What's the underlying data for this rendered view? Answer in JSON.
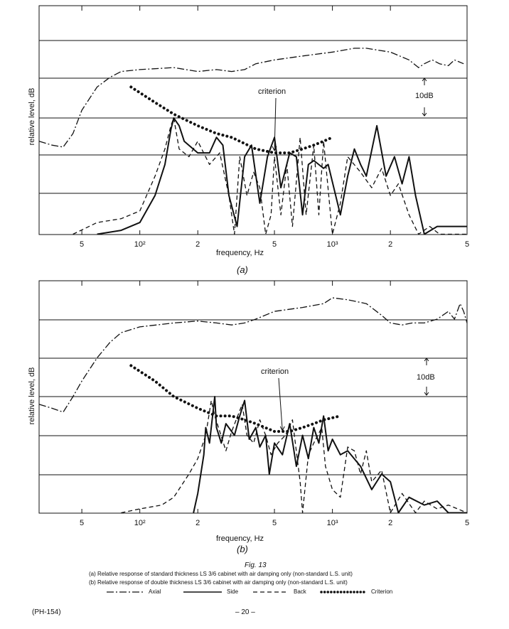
{
  "figure": {
    "number": "Fig. 13",
    "caption_a": "(a) Relative response of standard thickness LS 3/6 cabinet with air damping only (non-standard L.S. unit)",
    "caption_b": "(b) Relative response of double thickness LS 3/6 cabinet with air damping only (non-standard L.S. unit)"
  },
  "legend": [
    {
      "name": "Axial",
      "style": "dash-dot"
    },
    {
      "name": "Side",
      "style": "solid"
    },
    {
      "name": "Back",
      "style": "dashed"
    },
    {
      "name": "Criterion",
      "style": "dotted"
    }
  ],
  "footer": {
    "code": "(PH-154)",
    "page": "– 20 –"
  },
  "chart_data": [
    {
      "type": "line",
      "panel_label": "(a)",
      "xlabel": "frequency, Hz",
      "ylabel": "relative level, dB",
      "xscale": "log",
      "xlim": [
        30,
        5000
      ],
      "x_ticks": [
        {
          "v": 50,
          "t": "5"
        },
        {
          "v": 100,
          "t": "10²"
        },
        {
          "v": 200,
          "t": "2"
        },
        {
          "v": 500,
          "t": "5"
        },
        {
          "v": 1000,
          "t": "10³"
        },
        {
          "v": 2000,
          "t": "2"
        },
        {
          "v": 5000,
          "t": "5"
        }
      ],
      "grid": "horizontal, 10 dB spacing",
      "scale_marker": "10dB",
      "annotation": {
        "text": "criterion",
        "x": 500
      },
      "series": [
        {
          "name": "Axial",
          "points": [
            [
              30,
              -6
            ],
            [
              35,
              -7
            ],
            [
              40,
              -7.5
            ],
            [
              45,
              -4
            ],
            [
              50,
              2
            ],
            [
              60,
              8
            ],
            [
              70,
              10.5
            ],
            [
              80,
              12
            ],
            [
              100,
              12.5
            ],
            [
              150,
              13
            ],
            [
              200,
              12
            ],
            [
              250,
              12.5
            ],
            [
              300,
              12
            ],
            [
              350,
              12.5
            ],
            [
              400,
              14
            ],
            [
              500,
              15
            ],
            [
              700,
              16
            ],
            [
              1000,
              17
            ],
            [
              1300,
              18
            ],
            [
              1500,
              18
            ],
            [
              2000,
              17
            ],
            [
              2500,
              15
            ],
            [
              2800,
              13
            ],
            [
              3000,
              14
            ],
            [
              3300,
              15
            ],
            [
              3600,
              14
            ],
            [
              4000,
              13.5
            ],
            [
              4300,
              15
            ],
            [
              4800,
              14
            ]
          ]
        },
        {
          "name": "Side",
          "points": [
            [
              60,
              -30
            ],
            [
              80,
              -29
            ],
            [
              100,
              -27
            ],
            [
              120,
              -20
            ],
            [
              135,
              -12
            ],
            [
              145,
              -3
            ],
            [
              150,
              0
            ],
            [
              160,
              -2
            ],
            [
              170,
              -6
            ],
            [
              200,
              -9
            ],
            [
              230,
              -9
            ],
            [
              250,
              -5
            ],
            [
              270,
              -7
            ],
            [
              290,
              -20
            ],
            [
              320,
              -28
            ],
            [
              350,
              -10
            ],
            [
              380,
              -7
            ],
            [
              420,
              -22
            ],
            [
              460,
              -10
            ],
            [
              500,
              -5
            ],
            [
              540,
              -18
            ],
            [
              600,
              -9
            ],
            [
              650,
              -10
            ],
            [
              700,
              -25
            ],
            [
              750,
              -12
            ],
            [
              800,
              -11
            ],
            [
              900,
              -13
            ],
            [
              950,
              -12
            ],
            [
              1100,
              -25
            ],
            [
              1200,
              -15
            ],
            [
              1300,
              -8
            ],
            [
              1400,
              -12
            ],
            [
              1500,
              -15
            ],
            [
              1700,
              -2
            ],
            [
              1900,
              -15
            ],
            [
              2100,
              -10
            ],
            [
              2300,
              -17
            ],
            [
              2500,
              -10
            ],
            [
              2700,
              -20
            ],
            [
              3000,
              -30
            ],
            [
              3500,
              -28
            ],
            [
              4000,
              -28
            ],
            [
              5000,
              -28
            ]
          ]
        },
        {
          "name": "Back",
          "points": [
            [
              45,
              -30
            ],
            [
              60,
              -27
            ],
            [
              80,
              -26
            ],
            [
              100,
              -24
            ],
            [
              120,
              -15
            ],
            [
              135,
              -8
            ],
            [
              145,
              -2
            ],
            [
              150,
              0
            ],
            [
              160,
              -8
            ],
            [
              180,
              -10
            ],
            [
              200,
              -6
            ],
            [
              230,
              -12
            ],
            [
              260,
              -9
            ],
            [
              290,
              -20
            ],
            [
              310,
              -30
            ],
            [
              330,
              -10
            ],
            [
              360,
              -20
            ],
            [
              390,
              -14
            ],
            [
              420,
              -18
            ],
            [
              450,
              -30
            ],
            [
              480,
              -25
            ],
            [
              500,
              -10
            ],
            [
              540,
              -25
            ],
            [
              580,
              -12
            ],
            [
              620,
              -28
            ],
            [
              680,
              -5
            ],
            [
              730,
              -25
            ],
            [
              800,
              -7
            ],
            [
              850,
              -25
            ],
            [
              900,
              -6
            ],
            [
              1000,
              -30
            ],
            [
              1100,
              -22
            ],
            [
              1200,
              -10
            ],
            [
              1400,
              -14
            ],
            [
              1600,
              -18
            ],
            [
              1800,
              -13
            ],
            [
              2000,
              -20
            ],
            [
              2200,
              -17
            ],
            [
              2500,
              -25
            ],
            [
              2800,
              -30
            ],
            [
              3200,
              -28
            ],
            [
              3600,
              -30
            ],
            [
              4000,
              -30
            ],
            [
              5000,
              -30
            ]
          ]
        },
        {
          "name": "Criterion",
          "points": [
            [
              90,
              8
            ],
            [
              120,
              4
            ],
            [
              150,
              1
            ],
            [
              200,
              -2
            ],
            [
              250,
              -4
            ],
            [
              300,
              -5
            ],
            [
              400,
              -8
            ],
            [
              500,
              -9
            ],
            [
              600,
              -9
            ],
            [
              700,
              -8
            ],
            [
              800,
              -7
            ],
            [
              900,
              -6
            ],
            [
              1000,
              -5
            ]
          ]
        }
      ]
    },
    {
      "type": "line",
      "panel_label": "(b)",
      "xlabel": "frequency,  Hz",
      "ylabel": "relative level, dB",
      "xscale": "log",
      "xlim": [
        30,
        5000
      ],
      "x_ticks": [
        {
          "v": 50,
          "t": "5"
        },
        {
          "v": 100,
          "t": "10²"
        },
        {
          "v": 200,
          "t": "2"
        },
        {
          "v": 500,
          "t": "5"
        },
        {
          "v": 1000,
          "t": "10³"
        },
        {
          "v": 2000,
          "t": "2"
        },
        {
          "v": 5000,
          "t": "5"
        }
      ],
      "grid": "horizontal, 10 dB spacing",
      "scale_marker": "10dB",
      "annotation": {
        "text": "criterion",
        "x": 550
      },
      "series": [
        {
          "name": "Axial",
          "points": [
            [
              30,
              -2
            ],
            [
              35,
              -3
            ],
            [
              40,
              -4
            ],
            [
              45,
              0
            ],
            [
              50,
              4
            ],
            [
              60,
              10
            ],
            [
              70,
              14
            ],
            [
              80,
              16.5
            ],
            [
              100,
              18
            ],
            [
              150,
              19
            ],
            [
              200,
              19.5
            ],
            [
              250,
              19
            ],
            [
              300,
              18.5
            ],
            [
              350,
              19
            ],
            [
              400,
              20
            ],
            [
              500,
              22
            ],
            [
              700,
              23
            ],
            [
              900,
              24
            ],
            [
              1000,
              25.5
            ],
            [
              1200,
              25
            ],
            [
              1500,
              24
            ],
            [
              1800,
              21
            ],
            [
              2000,
              19
            ],
            [
              2300,
              18.5
            ],
            [
              2600,
              19
            ],
            [
              3000,
              19
            ],
            [
              3500,
              20
            ],
            [
              4000,
              22
            ],
            [
              4300,
              20
            ],
            [
              4600,
              24
            ],
            [
              4800,
              22
            ],
            [
              5000,
              19
            ]
          ]
        },
        {
          "name": "Side",
          "points": [
            [
              190,
              -30
            ],
            [
              200,
              -25
            ],
            [
              215,
              -15
            ],
            [
              220,
              -8
            ],
            [
              230,
              -12
            ],
            [
              245,
              0
            ],
            [
              250,
              -8
            ],
            [
              265,
              -12
            ],
            [
              280,
              -7
            ],
            [
              310,
              -10
            ],
            [
              330,
              -5
            ],
            [
              350,
              -1
            ],
            [
              370,
              -11
            ],
            [
              400,
              -8
            ],
            [
              420,
              -13
            ],
            [
              450,
              -10
            ],
            [
              470,
              -20
            ],
            [
              500,
              -12
            ],
            [
              550,
              -15
            ],
            [
              600,
              -7
            ],
            [
              650,
              -18
            ],
            [
              700,
              -10
            ],
            [
              750,
              -16
            ],
            [
              800,
              -8
            ],
            [
              850,
              -12
            ],
            [
              900,
              -5
            ],
            [
              950,
              -14
            ],
            [
              1000,
              -11
            ],
            [
              1100,
              -15
            ],
            [
              1200,
              -14
            ],
            [
              1400,
              -18
            ],
            [
              1600,
              -24
            ],
            [
              1800,
              -20
            ],
            [
              2000,
              -22
            ],
            [
              2200,
              -30
            ],
            [
              2500,
              -26
            ],
            [
              3000,
              -28
            ],
            [
              3500,
              -27
            ],
            [
              4000,
              -30
            ],
            [
              5000,
              -30
            ]
          ]
        },
        {
          "name": "Back",
          "points": [
            [
              80,
              -30
            ],
            [
              100,
              -29
            ],
            [
              130,
              -28
            ],
            [
              150,
              -26
            ],
            [
              180,
              -20
            ],
            [
              200,
              -16
            ],
            [
              220,
              -10
            ],
            [
              235,
              -1
            ],
            [
              245,
              -5
            ],
            [
              260,
              -9
            ],
            [
              280,
              -14
            ],
            [
              300,
              -9
            ],
            [
              340,
              -2
            ],
            [
              360,
              -10
            ],
            [
              390,
              -12
            ],
            [
              420,
              -6
            ],
            [
              450,
              -10
            ],
            [
              480,
              -15
            ],
            [
              520,
              -12
            ],
            [
              570,
              -10
            ],
            [
              620,
              -6
            ],
            [
              680,
              -22
            ],
            [
              700,
              -30
            ],
            [
              750,
              -15
            ],
            [
              800,
              -12
            ],
            [
              880,
              -8
            ],
            [
              920,
              -18
            ],
            [
              1000,
              -24
            ],
            [
              1100,
              -26
            ],
            [
              1200,
              -13
            ],
            [
              1300,
              -14
            ],
            [
              1400,
              -20
            ],
            [
              1500,
              -14
            ],
            [
              1600,
              -22
            ],
            [
              1800,
              -19
            ],
            [
              2000,
              -30
            ],
            [
              2300,
              -25
            ],
            [
              2700,
              -30
            ],
            [
              3000,
              -27
            ],
            [
              3500,
              -29
            ],
            [
              4000,
              -28
            ],
            [
              5000,
              -30
            ]
          ]
        },
        {
          "name": "Criterion",
          "points": [
            [
              90,
              8
            ],
            [
              120,
              4
            ],
            [
              150,
              0
            ],
            [
              200,
              -3
            ],
            [
              250,
              -5
            ],
            [
              300,
              -5
            ],
            [
              350,
              -6
            ],
            [
              400,
              -7
            ],
            [
              500,
              -9
            ],
            [
              600,
              -9
            ],
            [
              700,
              -8
            ],
            [
              800,
              -7
            ],
            [
              900,
              -6
            ],
            [
              1100,
              -5
            ]
          ]
        }
      ]
    }
  ]
}
